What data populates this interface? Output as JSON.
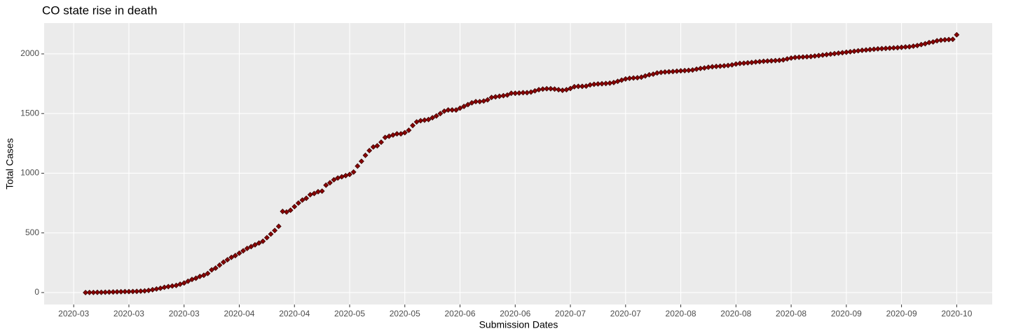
{
  "chart_data": {
    "type": "scatter",
    "title": "CO state rise in death",
    "x_label": "Submission Dates",
    "y_label": "Total Cases",
    "color": "#8b0000",
    "grid": true,
    "xlim": [
      -7.5,
      233
    ],
    "ylim": [
      -100,
      2258
    ],
    "xticks": [
      {
        "value": 0,
        "label": "2020-03"
      },
      {
        "value": 14,
        "label": "2020-03"
      },
      {
        "value": 28,
        "label": "2020-03"
      },
      {
        "value": 42,
        "label": "2020-04"
      },
      {
        "value": 56,
        "label": "2020-04"
      },
      {
        "value": 70,
        "label": "2020-05"
      },
      {
        "value": 84,
        "label": "2020-05"
      },
      {
        "value": 98,
        "label": "2020-06"
      },
      {
        "value": 112,
        "label": "2020-06"
      },
      {
        "value": 126,
        "label": "2020-07"
      },
      {
        "value": 140,
        "label": "2020-07"
      },
      {
        "value": 154,
        "label": "2020-08"
      },
      {
        "value": 168,
        "label": "2020-08"
      },
      {
        "value": 182,
        "label": "2020-08"
      },
      {
        "value": 196,
        "label": "2020-09"
      },
      {
        "value": 210,
        "label": "2020-09"
      },
      {
        "value": 224,
        "label": "2020-10"
      }
    ],
    "yticks": [
      0,
      500,
      1000,
      1500,
      2000
    ],
    "x": [
      3,
      4,
      5,
      6,
      7,
      8,
      9,
      10,
      11,
      12,
      13,
      14,
      15,
      16,
      17,
      18,
      19,
      20,
      21,
      22,
      23,
      24,
      25,
      26,
      27,
      28,
      29,
      30,
      31,
      32,
      33,
      34,
      35,
      36,
      37,
      38,
      39,
      40,
      41,
      42,
      43,
      44,
      45,
      46,
      47,
      48,
      49,
      50,
      51,
      52,
      53,
      54,
      55,
      56,
      57,
      58,
      59,
      60,
      61,
      62,
      63,
      64,
      65,
      66,
      67,
      68,
      69,
      70,
      71,
      72,
      73,
      74,
      75,
      76,
      77,
      78,
      79,
      80,
      81,
      82,
      83,
      84,
      85,
      86,
      87,
      88,
      89,
      90,
      91,
      92,
      93,
      94,
      95,
      96,
      97,
      98,
      99,
      100,
      101,
      102,
      103,
      104,
      105,
      106,
      107,
      108,
      109,
      110,
      111,
      112,
      113,
      114,
      115,
      116,
      117,
      118,
      119,
      120,
      121,
      122,
      123,
      124,
      125,
      126,
      127,
      128,
      129,
      130,
      131,
      132,
      133,
      134,
      135,
      136,
      137,
      138,
      139,
      140,
      141,
      142,
      143,
      144,
      145,
      146,
      147,
      148,
      149,
      150,
      151,
      152,
      153,
      154,
      155,
      156,
      157,
      158,
      159,
      160,
      161,
      162,
      163,
      164,
      165,
      166,
      167,
      168,
      169,
      170,
      171,
      172,
      173,
      174,
      175,
      176,
      177,
      178,
      179,
      180,
      181,
      182,
      183,
      184,
      185,
      186,
      187,
      188,
      189,
      190,
      191,
      192,
      193,
      194,
      195,
      196,
      197,
      198,
      199,
      200,
      201,
      202,
      203,
      204,
      205,
      206,
      207,
      208,
      209,
      210,
      211,
      212,
      213,
      214,
      215,
      216,
      217,
      218,
      219,
      220,
      221,
      222,
      223,
      224
    ],
    "values": [
      0,
      1,
      1,
      2,
      2,
      3,
      4,
      5,
      6,
      7,
      8,
      8,
      9,
      10,
      12,
      14,
      18,
      24,
      30,
      36,
      44,
      50,
      55,
      60,
      70,
      80,
      95,
      110,
      120,
      135,
      145,
      160,
      190,
      205,
      230,
      255,
      275,
      295,
      310,
      330,
      350,
      370,
      385,
      400,
      415,
      430,
      460,
      490,
      520,
      555,
      680,
      675,
      690,
      720,
      750,
      775,
      790,
      820,
      830,
      845,
      850,
      900,
      920,
      945,
      960,
      970,
      980,
      990,
      1010,
      1060,
      1100,
      1150,
      1190,
      1220,
      1230,
      1260,
      1300,
      1310,
      1320,
      1330,
      1330,
      1340,
      1360,
      1400,
      1430,
      1440,
      1445,
      1450,
      1465,
      1480,
      1500,
      1520,
      1530,
      1530,
      1530,
      1545,
      1560,
      1575,
      1590,
      1600,
      1600,
      1605,
      1615,
      1635,
      1640,
      1645,
      1650,
      1655,
      1670,
      1670,
      1672,
      1675,
      1675,
      1680,
      1690,
      1700,
      1705,
      1708,
      1708,
      1705,
      1700,
      1695,
      1700,
      1710,
      1725,
      1728,
      1728,
      1730,
      1740,
      1745,
      1748,
      1750,
      1752,
      1755,
      1760,
      1770,
      1780,
      1790,
      1795,
      1798,
      1800,
      1805,
      1815,
      1825,
      1830,
      1840,
      1845,
      1848,
      1850,
      1852,
      1855,
      1858,
      1860,
      1862,
      1865,
      1872,
      1878,
      1882,
      1888,
      1892,
      1895,
      1897,
      1900,
      1903,
      1908,
      1915,
      1920,
      1922,
      1925,
      1928,
      1932,
      1935,
      1938,
      1940,
      1942,
      1944,
      1946,
      1950,
      1958,
      1965,
      1970,
      1972,
      1974,
      1976,
      1978,
      1982,
      1986,
      1990,
      1994,
      1998,
      2002,
      2006,
      2010,
      2014,
      2018,
      2022,
      2026,
      2030,
      2033,
      2036,
      2039,
      2042,
      2044,
      2046,
      2048,
      2050,
      2052,
      2055,
      2058,
      2060,
      2065,
      2070,
      2078,
      2085,
      2095,
      2100,
      2110,
      2115,
      2118,
      2120,
      2122,
      2160
    ]
  }
}
